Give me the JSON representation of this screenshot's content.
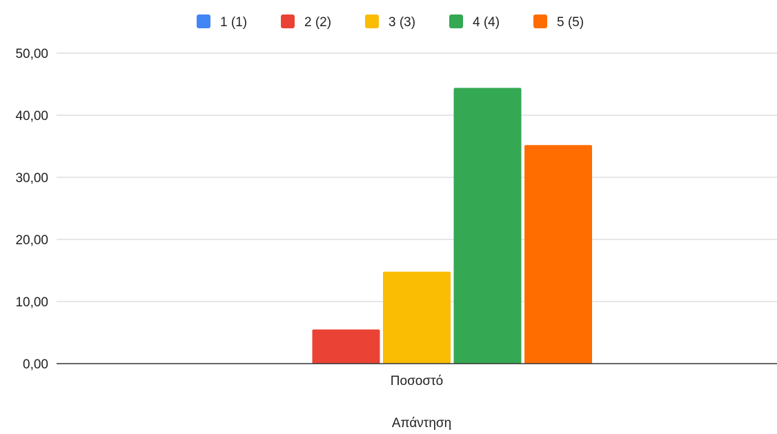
{
  "chart_data": {
    "type": "bar",
    "title": "",
    "xlabel": "Απάντηση",
    "ylabel": "",
    "categories": [
      "Ποσοστό"
    ],
    "series": [
      {
        "name": "1 (1)",
        "color": "#4285f4",
        "values": [
          0
        ]
      },
      {
        "name": "2 (2)",
        "color": "#ea4335",
        "values": [
          5.5
        ]
      },
      {
        "name": "3 (3)",
        "color": "#fbbc04",
        "values": [
          14.8
        ]
      },
      {
        "name": "4 (4)",
        "color": "#34a853",
        "values": [
          44.4
        ]
      },
      {
        "name": "5 (5)",
        "color": "#ff6d01",
        "values": [
          35.2
        ]
      }
    ],
    "ylim": [
      0,
      50
    ],
    "yticks": [
      "0,00",
      "10,00",
      "20,00",
      "30,00",
      "40,00",
      "50,00"
    ],
    "grid": true,
    "legend_position": "top"
  }
}
